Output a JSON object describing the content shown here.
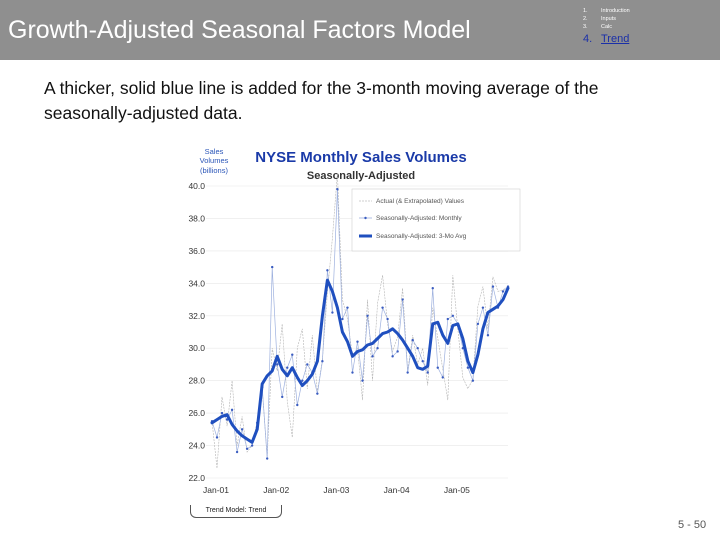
{
  "header": {
    "title": "Growth-Adjusted Seasonal Factors Model",
    "nav": [
      {
        "num": "1.",
        "label": "Introduction",
        "active": false
      },
      {
        "num": "2.",
        "label": "Inputs",
        "active": false
      },
      {
        "num": "3.",
        "label": "Calc",
        "active": false
      },
      {
        "num": "4.",
        "label": "Trend",
        "active": true
      }
    ]
  },
  "caption": "A thicker, solid blue line is added for the 3-month moving average of the seasonally-adjusted data.",
  "tab_label": "Trend Model: Trend",
  "page_number": "5 -  50",
  "colors": {
    "header_bg": "#8f8f8f",
    "accent_blue": "#1f4fbf",
    "title_blue": "#1a3aa8"
  },
  "chart_data": {
    "type": "line",
    "title": "NYSE Monthly Sales Volumes",
    "subtitle": "Seasonally-Adjusted",
    "ylabel": "Sales Volumes (billions)",
    "ylim": [
      22,
      40
    ],
    "yticks": [
      "22.0",
      "24.0",
      "26.0",
      "28.0",
      "30.0",
      "32.0",
      "34.0",
      "36.0",
      "38.0",
      "40.0"
    ],
    "xticks": [
      "Jan-01",
      "Jan-02",
      "Jan-03",
      "Jan-04",
      "Jan-05"
    ],
    "legend": [
      "Actual (& Extrapolated) Values",
      "Seasonally-Adjusted: Monthly",
      "Seasonally-Adjusted: 3-Mo Avg"
    ],
    "series": [
      {
        "name": "Actual (& Extrapolated) Values",
        "values": [
          25.5,
          22.6,
          27.0,
          25.2,
          28.0,
          24.0,
          25.8,
          23.6,
          24.0,
          25.5,
          27.5,
          23.3,
          30.0,
          28.6,
          31.5,
          26.7,
          24.5,
          30.0,
          31.2,
          27.5,
          30.8,
          27.3,
          29.3,
          33.4,
          36.8,
          40.8,
          33.0,
          31.8,
          29.5,
          30.0,
          26.8,
          33.0,
          28.0,
          32.8,
          34.5,
          31.5,
          29.8,
          30.7,
          33.7,
          28.6,
          30.8,
          29.0,
          30.0,
          27.7,
          32.5,
          30.6,
          28.7,
          26.8,
          34.5,
          31.2,
          28.2,
          27.5,
          28.1,
          32.6,
          33.8,
          31.2,
          34.4,
          33.5,
          33.6,
          33.8
        ]
      },
      {
        "name": "Seasonally-Adjusted: Monthly",
        "values": [
          25.5,
          24.5,
          26.0,
          25.6,
          26.2,
          23.6,
          25.0,
          23.8,
          24.0,
          25.4,
          27.6,
          23.2,
          35.0,
          29.0,
          27.0,
          28.8,
          29.6,
          26.5,
          28.0,
          29.0,
          28.5,
          27.2,
          29.2,
          34.8,
          32.2,
          39.8,
          31.8,
          32.5,
          28.5,
          30.4,
          28.0,
          32.0,
          29.5,
          30.0,
          32.5,
          31.8,
          29.5,
          29.8,
          33.0,
          28.5,
          30.5,
          30.0,
          29.2,
          28.5,
          33.7,
          28.8,
          28.2,
          31.8,
          32.0,
          31.5,
          30.0,
          28.8,
          28.0,
          31.5,
          32.5,
          30.8,
          33.8,
          32.5,
          33.5,
          33.8
        ]
      },
      {
        "name": "Seasonally-Adjusted: 3-Mo Avg",
        "values": [
          25.4,
          25.6,
          25.8,
          25.9,
          25.3,
          24.9,
          24.6,
          24.4,
          24.2,
          25.0,
          27.8,
          28.3,
          28.6,
          29.5,
          28.7,
          28.3,
          28.8,
          28.2,
          27.7,
          28.0,
          28.4,
          29.2,
          32.0,
          34.2,
          33.5,
          32.5,
          31.0,
          30.4,
          29.5,
          29.8,
          29.9,
          30.2,
          30.3,
          30.6,
          30.9,
          31.0,
          31.2,
          30.9,
          30.5,
          30.0,
          29.5,
          28.8,
          28.7,
          28.9,
          31.5,
          31.6,
          30.8,
          30.3,
          31.4,
          31.5,
          30.6,
          29.2,
          28.5,
          29.6,
          31.2,
          32.2,
          32.4,
          32.6,
          33.0,
          33.7
        ]
      }
    ]
  }
}
